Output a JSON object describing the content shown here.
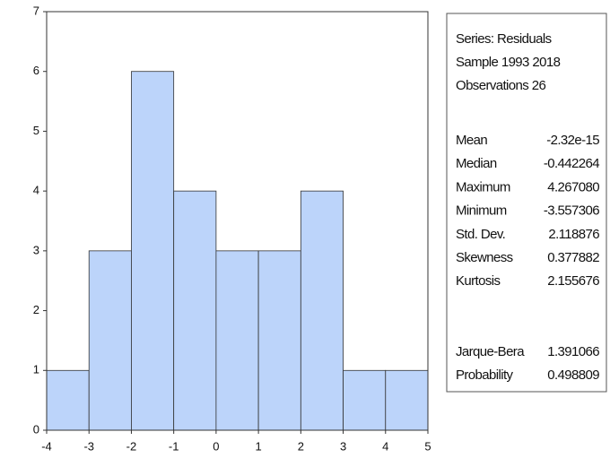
{
  "chart_data": {
    "type": "histogram",
    "bins": [
      -4,
      -3,
      -2,
      -1,
      0,
      1,
      2,
      3,
      4,
      5
    ],
    "values": [
      1,
      3,
      6,
      4,
      3,
      3,
      4,
      1,
      1
    ],
    "color": "#bcd4fa",
    "xlim": [
      -4,
      5
    ],
    "xticks": [
      -4,
      -3,
      -2,
      -1,
      0,
      1,
      2,
      3,
      4,
      5
    ],
    "ylim": [
      0,
      7
    ],
    "yticks": [
      0,
      1,
      2,
      3,
      4,
      5,
      6,
      7
    ],
    "stats_box": {
      "header": [
        "Series: Residuals",
        "Sample 1993 2018",
        "Observations 26"
      ],
      "rows": [
        [
          "Mean",
          "-2.32e-15"
        ],
        [
          "Median",
          "-0.442264"
        ],
        [
          "Maximum",
          "4.267080"
        ],
        [
          "Minimum",
          "-3.557306"
        ],
        [
          "Std. Dev.",
          "2.118876"
        ],
        [
          "Skewness",
          "0.377882"
        ],
        [
          "Kurtosis",
          "2.155676"
        ]
      ],
      "tests": [
        [
          "Jarque-Bera",
          "1.391066"
        ],
        [
          "Probability",
          "0.498809"
        ]
      ]
    }
  }
}
